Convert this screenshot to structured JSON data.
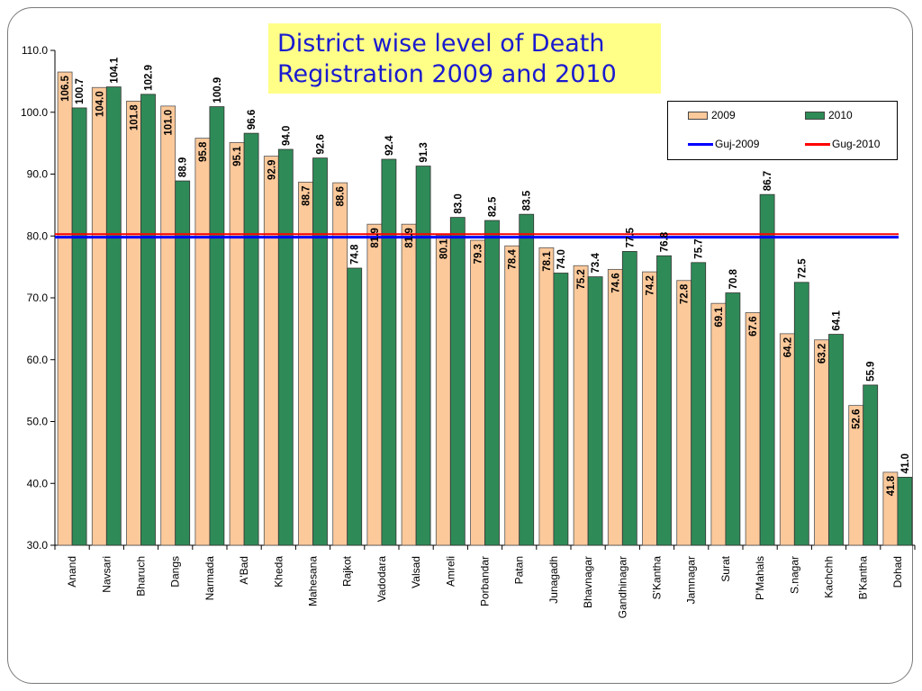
{
  "title": {
    "line1": "District wise level of Death",
    "line2": "Registration 2009 and 2010"
  },
  "legend": {
    "s2009": "2009",
    "s2010": "2010",
    "guj2009": "Guj-2009",
    "guj2010": "Gug-2010"
  },
  "colors": {
    "bar2009": "#fcc99b",
    "bar2010": "#2e8b57",
    "guj2009": "#0000ff",
    "guj2010": "#ff0000"
  },
  "chart_data": {
    "type": "bar",
    "categories": [
      "Anand",
      "Navsari",
      "Bharuch",
      "Dangs",
      "Narmada",
      "A'Bad",
      "Kheda",
      "Mahesana",
      "Rajkot",
      "Vadodara",
      "Valsad",
      "Amreli",
      "Porbandar",
      "Patan",
      "Junagadh",
      "Bhavnagar",
      "Gandhinagar",
      "S'Kantha",
      "Jamnagar",
      "Surat",
      "P'Mahals",
      "S.nagar",
      "Kachchh",
      "B'Kantha",
      "Dohad"
    ],
    "series": [
      {
        "name": "2009",
        "values": [
          106.5,
          104.0,
          101.8,
          101.0,
          95.8,
          95.1,
          92.9,
          88.7,
          88.6,
          81.9,
          81.9,
          80.1,
          79.3,
          78.4,
          78.1,
          75.2,
          74.6,
          74.2,
          72.8,
          69.1,
          67.6,
          64.2,
          63.2,
          52.6,
          41.8
        ]
      },
      {
        "name": "2010",
        "values": [
          100.7,
          104.1,
          102.9,
          88.9,
          100.9,
          96.6,
          94.0,
          92.6,
          74.8,
          92.4,
          91.3,
          83.0,
          82.5,
          83.5,
          74.0,
          73.4,
          77.5,
          76.8,
          75.7,
          70.8,
          86.7,
          72.5,
          64.1,
          55.9,
          41.0
        ]
      }
    ],
    "labels_2009": [
      "106.5",
      "104.0",
      "101.8",
      "101.0",
      "95.8",
      "95.1",
      "92.9",
      "88.7",
      "88.6",
      "81.9",
      "81.9",
      "80.1",
      "79.3",
      "78.4",
      "78.1",
      "75.2",
      "74.6",
      "74.2",
      "72.8",
      "69.1",
      "67.6",
      "64.2",
      "63.2",
      "52.6",
      "41.8"
    ],
    "labels_2010": [
      "100.7",
      "104.1",
      "102.9",
      "88.9",
      "100.9",
      "96.6",
      "94.0",
      "92.6",
      "74.8",
      "92.4",
      "91.3",
      "83.0",
      "82.5",
      "83.5",
      "74.0",
      "73.4",
      "77.5",
      "76.8",
      "75.7",
      "70.8",
      "86.7",
      "72.5",
      "64.1",
      "55.9",
      "41.0"
    ],
    "reference_lines": [
      {
        "name": "Guj-2009",
        "value": 79.8
      },
      {
        "name": "Gug-2010",
        "value": 80.3
      }
    ],
    "ylim": [
      30,
      110
    ],
    "yticks": [
      30,
      40,
      50,
      60,
      70,
      80,
      90,
      100,
      110
    ],
    "ytick_labels": [
      "30.0",
      "40.0",
      "50.0",
      "60.0",
      "70.0",
      "80.0",
      "90.0",
      "100.0",
      "110.0"
    ],
    "legend_position": "top-right"
  }
}
